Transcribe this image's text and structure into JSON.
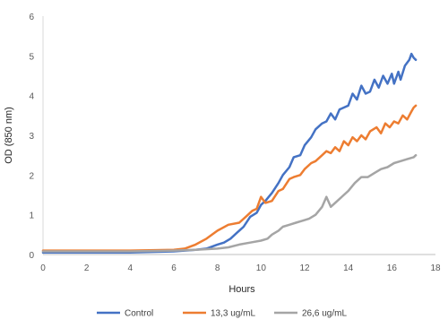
{
  "chart_data": {
    "type": "line",
    "title": "",
    "xlabel": "Hours",
    "ylabel": "OD (850 nm)",
    "xlim": [
      0,
      18
    ],
    "ylim": [
      0,
      6
    ],
    "x_ticks": [
      "0",
      "2",
      "4",
      "6",
      "8",
      "10",
      "12",
      "14",
      "16",
      "18"
    ],
    "y_ticks": [
      "0",
      "1",
      "2",
      "3",
      "4",
      "5",
      "6"
    ],
    "grid": false,
    "legend_position": "bottom",
    "series": [
      {
        "name": "Control",
        "color": "#4472C4",
        "points": [
          [
            0,
            0.05
          ],
          [
            2,
            0.05
          ],
          [
            4,
            0.05
          ],
          [
            6,
            0.08
          ],
          [
            6.5,
            0.1
          ],
          [
            7,
            0.12
          ],
          [
            7.5,
            0.15
          ],
          [
            8,
            0.25
          ],
          [
            8.3,
            0.3
          ],
          [
            8.6,
            0.4
          ],
          [
            8.9,
            0.55
          ],
          [
            9.2,
            0.7
          ],
          [
            9.5,
            0.95
          ],
          [
            9.8,
            1.05
          ],
          [
            10.0,
            1.25
          ],
          [
            10.2,
            1.35
          ],
          [
            10.5,
            1.55
          ],
          [
            10.8,
            1.8
          ],
          [
            11.0,
            2.0
          ],
          [
            11.3,
            2.2
          ],
          [
            11.5,
            2.45
          ],
          [
            11.8,
            2.5
          ],
          [
            12.0,
            2.75
          ],
          [
            12.3,
            2.95
          ],
          [
            12.5,
            3.15
          ],
          [
            12.8,
            3.3
          ],
          [
            13.0,
            3.35
          ],
          [
            13.2,
            3.55
          ],
          [
            13.4,
            3.4
          ],
          [
            13.6,
            3.65
          ],
          [
            13.8,
            3.7
          ],
          [
            14.0,
            3.75
          ],
          [
            14.2,
            4.05
          ],
          [
            14.4,
            3.9
          ],
          [
            14.6,
            4.25
          ],
          [
            14.8,
            4.05
          ],
          [
            15.0,
            4.1
          ],
          [
            15.2,
            4.4
          ],
          [
            15.4,
            4.2
          ],
          [
            15.6,
            4.5
          ],
          [
            15.8,
            4.3
          ],
          [
            16.0,
            4.55
          ],
          [
            16.1,
            4.3
          ],
          [
            16.3,
            4.6
          ],
          [
            16.4,
            4.4
          ],
          [
            16.6,
            4.75
          ],
          [
            16.8,
            4.9
          ],
          [
            16.9,
            5.05
          ],
          [
            17.0,
            4.95
          ],
          [
            17.1,
            4.9
          ]
        ]
      },
      {
        "name": "13,3 ug/mL",
        "color": "#ED7D31",
        "points": [
          [
            0,
            0.1
          ],
          [
            2,
            0.1
          ],
          [
            4,
            0.1
          ],
          [
            6,
            0.12
          ],
          [
            6.5,
            0.15
          ],
          [
            7,
            0.25
          ],
          [
            7.5,
            0.4
          ],
          [
            8,
            0.6
          ],
          [
            8.5,
            0.75
          ],
          [
            9.0,
            0.8
          ],
          [
            9.3,
            0.95
          ],
          [
            9.6,
            1.1
          ],
          [
            9.8,
            1.15
          ],
          [
            10.0,
            1.45
          ],
          [
            10.2,
            1.3
          ],
          [
            10.5,
            1.35
          ],
          [
            10.8,
            1.6
          ],
          [
            11.0,
            1.65
          ],
          [
            11.3,
            1.9
          ],
          [
            11.5,
            1.95
          ],
          [
            11.8,
            2.0
          ],
          [
            12.0,
            2.15
          ],
          [
            12.3,
            2.3
          ],
          [
            12.5,
            2.35
          ],
          [
            12.8,
            2.5
          ],
          [
            13.0,
            2.6
          ],
          [
            13.2,
            2.55
          ],
          [
            13.4,
            2.7
          ],
          [
            13.6,
            2.6
          ],
          [
            13.8,
            2.85
          ],
          [
            14.0,
            2.75
          ],
          [
            14.2,
            2.95
          ],
          [
            14.4,
            2.85
          ],
          [
            14.6,
            3.0
          ],
          [
            14.8,
            2.9
          ],
          [
            15.0,
            3.1
          ],
          [
            15.3,
            3.2
          ],
          [
            15.5,
            3.05
          ],
          [
            15.7,
            3.3
          ],
          [
            15.9,
            3.2
          ],
          [
            16.1,
            3.35
          ],
          [
            16.3,
            3.3
          ],
          [
            16.5,
            3.5
          ],
          [
            16.7,
            3.4
          ],
          [
            16.9,
            3.6
          ],
          [
            17.0,
            3.7
          ],
          [
            17.1,
            3.75
          ]
        ]
      },
      {
        "name": "26,6 ug/mL",
        "color": "#A5A5A5",
        "points": [
          [
            0,
            0.08
          ],
          [
            2,
            0.08
          ],
          [
            4,
            0.08
          ],
          [
            6,
            0.1
          ],
          [
            7,
            0.12
          ],
          [
            8,
            0.15
          ],
          [
            8.5,
            0.18
          ],
          [
            9.0,
            0.25
          ],
          [
            9.5,
            0.3
          ],
          [
            10.0,
            0.35
          ],
          [
            10.3,
            0.4
          ],
          [
            10.5,
            0.5
          ],
          [
            10.8,
            0.6
          ],
          [
            11.0,
            0.7
          ],
          [
            11.3,
            0.75
          ],
          [
            11.6,
            0.8
          ],
          [
            11.9,
            0.85
          ],
          [
            12.2,
            0.9
          ],
          [
            12.5,
            1.0
          ],
          [
            12.8,
            1.2
          ],
          [
            13.0,
            1.45
          ],
          [
            13.2,
            1.2
          ],
          [
            13.5,
            1.35
          ],
          [
            13.8,
            1.5
          ],
          [
            14.0,
            1.6
          ],
          [
            14.3,
            1.8
          ],
          [
            14.6,
            1.95
          ],
          [
            14.9,
            1.95
          ],
          [
            15.2,
            2.05
          ],
          [
            15.5,
            2.15
          ],
          [
            15.8,
            2.2
          ],
          [
            16.1,
            2.3
          ],
          [
            16.4,
            2.35
          ],
          [
            16.7,
            2.4
          ],
          [
            17.0,
            2.45
          ],
          [
            17.1,
            2.5
          ]
        ]
      }
    ]
  }
}
